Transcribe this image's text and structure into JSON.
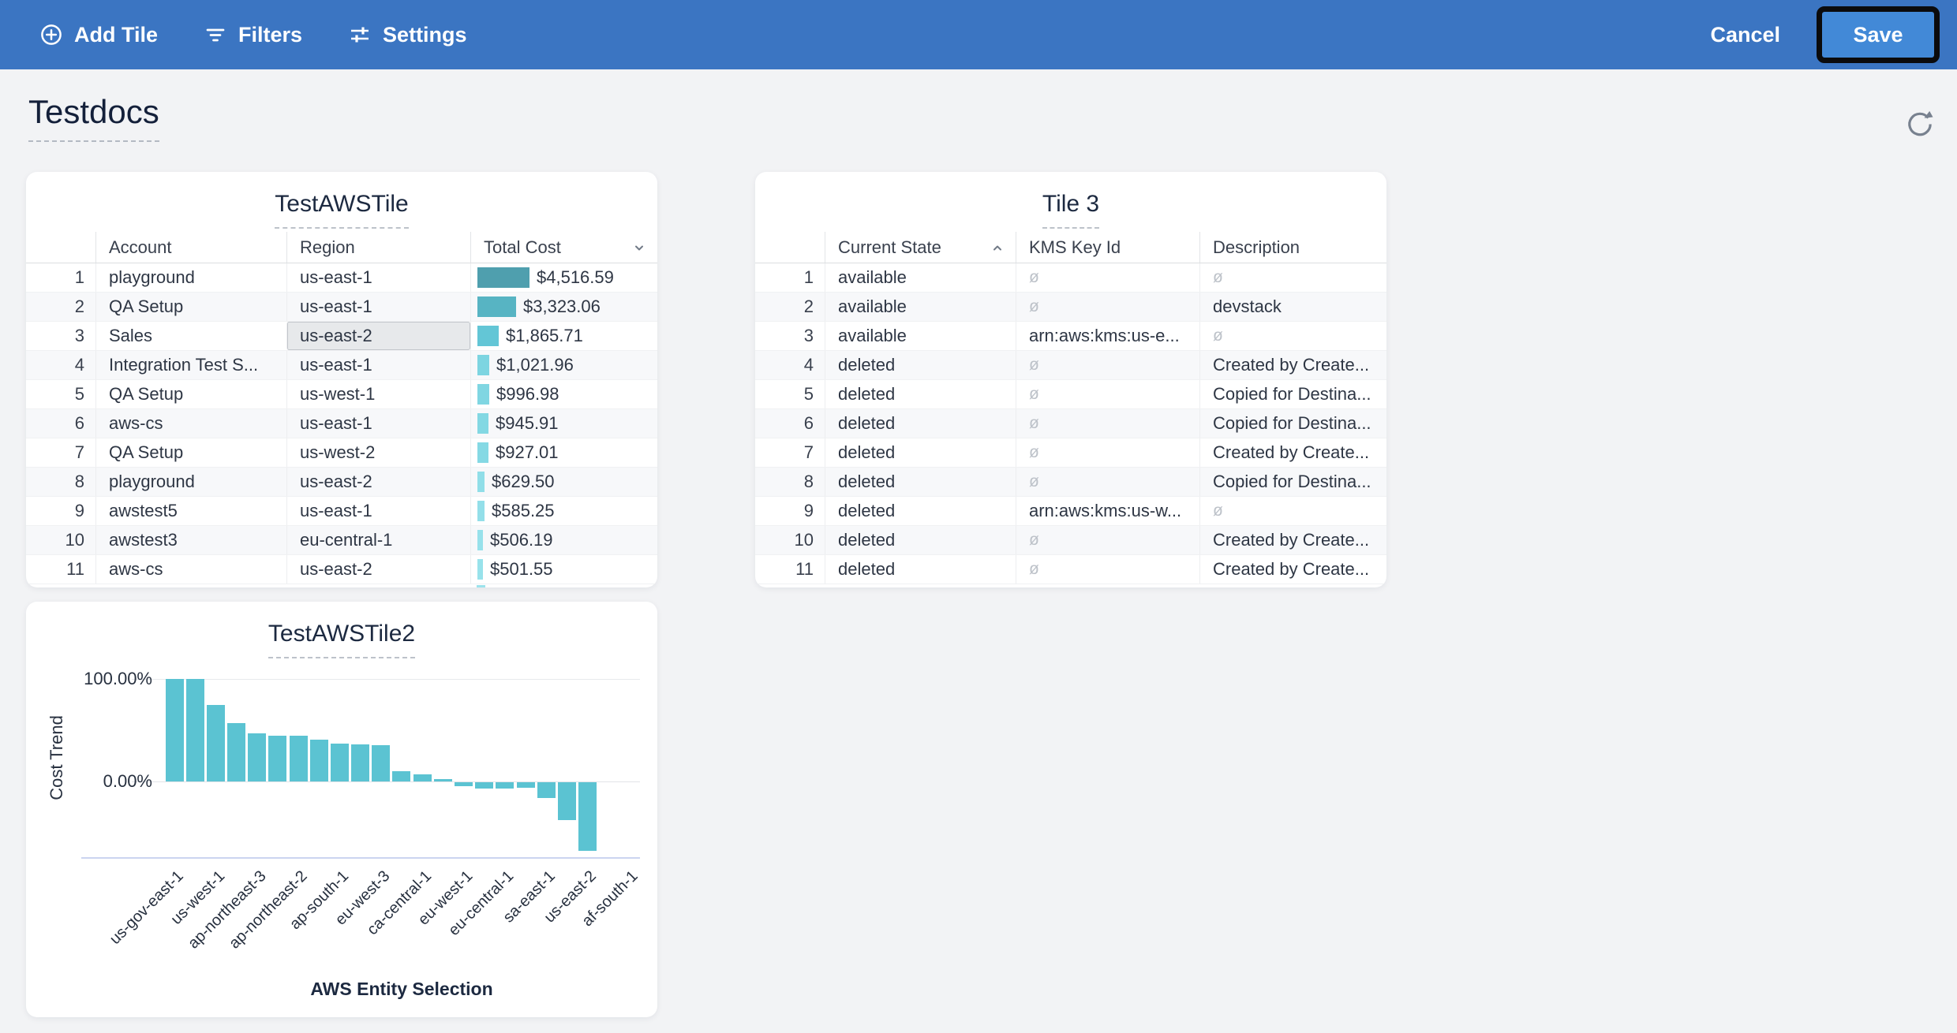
{
  "toolbar": {
    "add_tile_label": "Add Tile",
    "filters_label": "Filters",
    "settings_label": "Settings",
    "cancel_label": "Cancel",
    "save_label": "Save",
    "bg_color": "#3B75C2",
    "save_button_color": "#4289D7",
    "save_focus_ring_color": "#0B0B0C"
  },
  "page": {
    "title": "Testdocs"
  },
  "tile_aws": {
    "title": "TestAWSTile",
    "columns": [
      "Account",
      "Region",
      "Total Cost"
    ],
    "sorted_column": "Total Cost",
    "sort_direction": "desc",
    "selected_cell": {
      "row": 3,
      "column": "Region"
    },
    "max_cost": 4516.59,
    "rows": [
      {
        "n": "1",
        "account": "playground",
        "region": "us-east-1",
        "cost": "$4,516.59",
        "cost_value": 4516.59,
        "bar_color": "#4F9FAE"
      },
      {
        "n": "2",
        "account": "QA Setup",
        "region": "us-east-1",
        "cost": "$3,323.06",
        "cost_value": 3323.06,
        "bar_color": "#57B4C3"
      },
      {
        "n": "3",
        "account": "Sales",
        "region": "us-east-2",
        "cost": "$1,865.71",
        "cost_value": 1865.71,
        "bar_color": "#63C6D6"
      },
      {
        "n": "4",
        "account": "Integration Test S...",
        "region": "us-east-1",
        "cost": "$1,021.96",
        "cost_value": 1021.96,
        "bar_color": "#7DD5E1"
      },
      {
        "n": "5",
        "account": "QA Setup",
        "region": "us-west-1",
        "cost": "$996.98",
        "cost_value": 996.98,
        "bar_color": "#80D6E2"
      },
      {
        "n": "6",
        "account": "aws-cs",
        "region": "us-east-1",
        "cost": "$945.91",
        "cost_value": 945.91,
        "bar_color": "#83D8E3"
      },
      {
        "n": "7",
        "account": "QA Setup",
        "region": "us-west-2",
        "cost": "$927.01",
        "cost_value": 927.01,
        "bar_color": "#85D9E4"
      },
      {
        "n": "8",
        "account": "playground",
        "region": "us-east-2",
        "cost": "$629.50",
        "cost_value": 629.5,
        "bar_color": "#90DEE8"
      },
      {
        "n": "9",
        "account": "awstest5",
        "region": "us-east-1",
        "cost": "$585.25",
        "cost_value": 585.25,
        "bar_color": "#93DFE9"
      },
      {
        "n": "10",
        "account": "awstest3",
        "region": "eu-central-1",
        "cost": "$506.19",
        "cost_value": 506.19,
        "bar_color": "#97E1EB"
      },
      {
        "n": "11",
        "account": "aws-cs",
        "region": "us-east-2",
        "cost": "$501.55",
        "cost_value": 501.55,
        "bar_color": "#98E2EB"
      }
    ]
  },
  "tile_3": {
    "title": "Tile 3",
    "columns": [
      "Current State",
      "KMS Key Id",
      "Description"
    ],
    "sorted_column": "Current State",
    "sort_direction": "asc",
    "null_symbol": "ø",
    "rows": [
      {
        "n": "1",
        "state": "available",
        "kms": null,
        "description": null
      },
      {
        "n": "2",
        "state": "available",
        "kms": null,
        "description": "devstack"
      },
      {
        "n": "3",
        "state": "available",
        "kms": "arn:aws:kms:us-e...",
        "description": null
      },
      {
        "n": "4",
        "state": "deleted",
        "kms": null,
        "description": "Created by Create..."
      },
      {
        "n": "5",
        "state": "deleted",
        "kms": null,
        "description": "Copied for Destina..."
      },
      {
        "n": "6",
        "state": "deleted",
        "kms": null,
        "description": "Copied for Destina..."
      },
      {
        "n": "7",
        "state": "deleted",
        "kms": null,
        "description": "Created by Create..."
      },
      {
        "n": "8",
        "state": "deleted",
        "kms": null,
        "description": "Copied for Destina..."
      },
      {
        "n": "9",
        "state": "deleted",
        "kms": "arn:aws:kms:us-w...",
        "description": null
      },
      {
        "n": "10",
        "state": "deleted",
        "kms": null,
        "description": "Created by Create..."
      },
      {
        "n": "11",
        "state": "deleted",
        "kms": null,
        "description": "Created by Create..."
      }
    ]
  },
  "chart_data": {
    "type": "bar",
    "title": "TestAWSTile2",
    "xlabel": "AWS Entity Selection",
    "ylabel": "Cost Trend",
    "y_ticks": [
      "100.00%",
      "0.00%"
    ],
    "ylim": [
      -75,
      110
    ],
    "grid": true,
    "bar_color": "#5BC3D2",
    "labels_every": 2,
    "categories": [
      "us-gov-east-1",
      "us-west-1",
      "ap-northeast-3",
      "ap-northeast-2",
      "ap-south-1",
      "eu-west-3",
      "ca-central-1",
      "eu-west-1",
      "eu-central-1",
      "sa-east-1",
      "us-east-2",
      "af-south-1"
    ],
    "values": [
      100,
      100,
      74.5,
      57,
      47,
      45,
      44.5,
      41,
      37,
      36,
      35.5,
      10,
      7,
      2.5,
      -4,
      -6,
      -6,
      -5.5,
      -15,
      -37,
      -67,
      0,
      0
    ]
  }
}
